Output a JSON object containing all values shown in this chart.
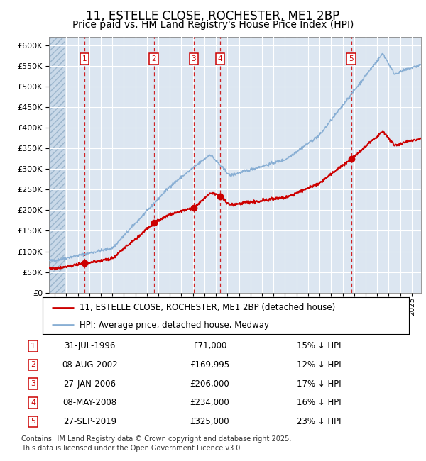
{
  "title": "11, ESTELLE CLOSE, ROCHESTER, ME1 2BP",
  "subtitle": "Price paid vs. HM Land Registry's House Price Index (HPI)",
  "ylim": [
    0,
    620000
  ],
  "yticks": [
    0,
    50000,
    100000,
    150000,
    200000,
    250000,
    300000,
    350000,
    400000,
    450000,
    500000,
    550000,
    600000
  ],
  "xlim_start": 1993.5,
  "xlim_end": 2025.8,
  "plot_bg_color": "#dce6f1",
  "grid_color": "#ffffff",
  "red_line_color": "#cc0000",
  "blue_line_color": "#89afd4",
  "vline_color": "#cc0000",
  "transactions": [
    {
      "num": 1,
      "year": 1996.58,
      "price": 71000,
      "price_str": "£71,000",
      "date_str": "31-JUL-1996",
      "pct_str": "15% ↓ HPI"
    },
    {
      "num": 2,
      "year": 2002.6,
      "price": 169995,
      "price_str": "£169,995",
      "date_str": "08-AUG-2002",
      "pct_str": "12% ↓ HPI"
    },
    {
      "num": 3,
      "year": 2006.07,
      "price": 206000,
      "price_str": "£206,000",
      "date_str": "27-JAN-2006",
      "pct_str": "17% ↓ HPI"
    },
    {
      "num": 4,
      "year": 2008.35,
      "price": 234000,
      "price_str": "£234,000",
      "date_str": "08-MAY-2008",
      "pct_str": "16% ↓ HPI"
    },
    {
      "num": 5,
      "year": 2019.74,
      "price": 325000,
      "price_str": "£325,000",
      "date_str": "27-SEP-2019",
      "pct_str": "23% ↓ HPI"
    }
  ],
  "legend_line1": "11, ESTELLE CLOSE, ROCHESTER, ME1 2BP (detached house)",
  "legend_line2": "HPI: Average price, detached house, Medway",
  "footnote_line1": "Contains HM Land Registry data © Crown copyright and database right 2025.",
  "footnote_line2": "This data is licensed under the Open Government Licence v3.0.",
  "title_fontsize": 12,
  "subtitle_fontsize": 10,
  "tick_fontsize": 8,
  "legend_fontsize": 8.5,
  "table_fontsize": 8.5,
  "footnote_fontsize": 7
}
